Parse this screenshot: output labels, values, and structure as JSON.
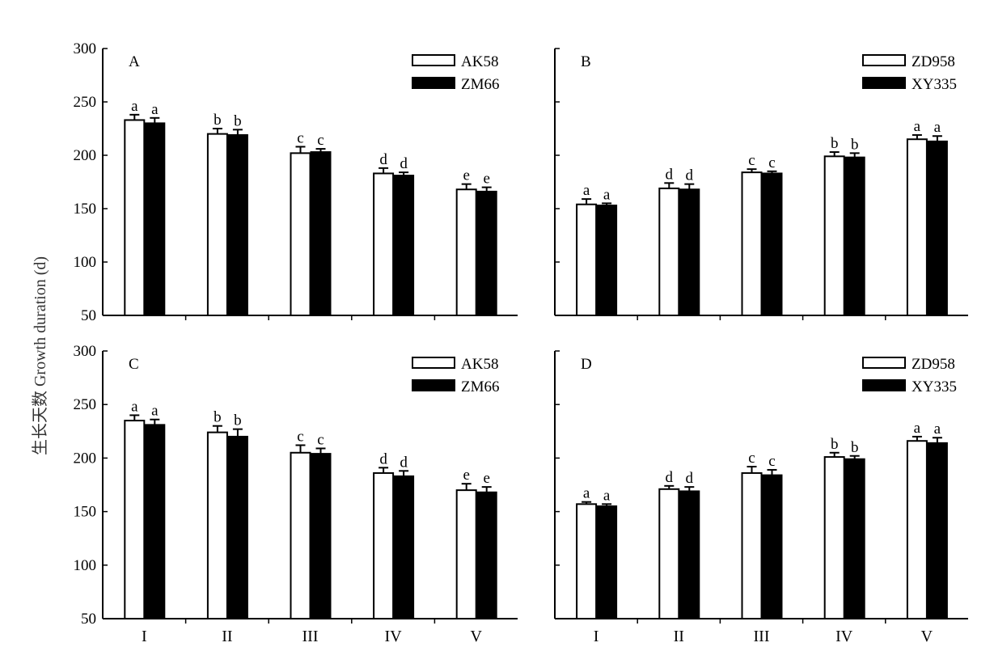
{
  "ylabel": "生长天数 Growth duration (d)",
  "chart_data": [
    {
      "panel": "A",
      "type": "bar",
      "categories": [
        "I",
        "II",
        "III",
        "IV",
        "V"
      ],
      "ylim": [
        50,
        300
      ],
      "yticks": [
        50,
        100,
        150,
        200,
        250,
        300
      ],
      "show_ytick_labels": true,
      "legend_position": "top-right",
      "series": [
        {
          "name": "AK58",
          "fill": "#ffffff",
          "values": [
            233,
            220,
            202,
            183,
            168
          ],
          "errors": [
            5,
            5,
            6,
            5,
            5
          ],
          "labels": [
            "a",
            "b",
            "c",
            "d",
            "e"
          ]
        },
        {
          "name": "ZM66",
          "fill": "#000000",
          "values": [
            230,
            219,
            203,
            181,
            166
          ],
          "errors": [
            5,
            5,
            3,
            3,
            4
          ],
          "labels": [
            "a",
            "b",
            "c",
            "d",
            "e"
          ]
        }
      ]
    },
    {
      "panel": "B",
      "type": "bar",
      "categories": [
        "I",
        "II",
        "III",
        "IV",
        "V"
      ],
      "ylim": [
        50,
        300
      ],
      "yticks": [
        50,
        100,
        150,
        200,
        250,
        300
      ],
      "show_ytick_labels": false,
      "legend_position": "top-right",
      "series": [
        {
          "name": "ZD958",
          "fill": "#ffffff",
          "values": [
            154,
            169,
            184,
            199,
            215
          ],
          "errors": [
            5,
            5,
            3,
            4,
            4
          ],
          "labels": [
            "a",
            "d",
            "c",
            "b",
            "a"
          ]
        },
        {
          "name": "XY335",
          "fill": "#000000",
          "values": [
            153,
            168,
            183,
            198,
            213
          ],
          "errors": [
            2,
            5,
            2,
            4,
            5
          ],
          "labels": [
            "a",
            "d",
            "c",
            "b",
            "a"
          ]
        }
      ]
    },
    {
      "panel": "C",
      "type": "bar",
      "categories": [
        "I",
        "II",
        "III",
        "IV",
        "V"
      ],
      "ylim": [
        50,
        300
      ],
      "yticks": [
        50,
        100,
        150,
        200,
        250,
        300
      ],
      "show_ytick_labels": true,
      "legend_position": "top-right",
      "series": [
        {
          "name": "AK58",
          "fill": "#ffffff",
          "values": [
            235,
            224,
            205,
            186,
            170
          ],
          "errors": [
            5,
            6,
            7,
            5,
            6
          ],
          "labels": [
            "a",
            "b",
            "c",
            "d",
            "e"
          ]
        },
        {
          "name": "ZM66",
          "fill": "#000000",
          "values": [
            231,
            220,
            204,
            183,
            168
          ],
          "errors": [
            5,
            7,
            5,
            5,
            5
          ],
          "labels": [
            "a",
            "b",
            "c",
            "d",
            "e"
          ]
        }
      ]
    },
    {
      "panel": "D",
      "type": "bar",
      "categories": [
        "I",
        "II",
        "III",
        "IV",
        "V"
      ],
      "ylim": [
        50,
        300
      ],
      "yticks": [
        50,
        100,
        150,
        200,
        250,
        300
      ],
      "show_ytick_labels": false,
      "legend_position": "top-right",
      "series": [
        {
          "name": "ZD958",
          "fill": "#ffffff",
          "values": [
            157,
            171,
            186,
            201,
            216
          ],
          "errors": [
            2,
            3,
            6,
            4,
            4
          ],
          "labels": [
            "a",
            "d",
            "c",
            "b",
            "a"
          ]
        },
        {
          "name": "XY335",
          "fill": "#000000",
          "values": [
            155,
            169,
            184,
            199,
            214
          ],
          "errors": [
            2,
            4,
            5,
            3,
            5
          ],
          "labels": [
            "a",
            "d",
            "c",
            "b",
            "a"
          ]
        }
      ]
    }
  ]
}
